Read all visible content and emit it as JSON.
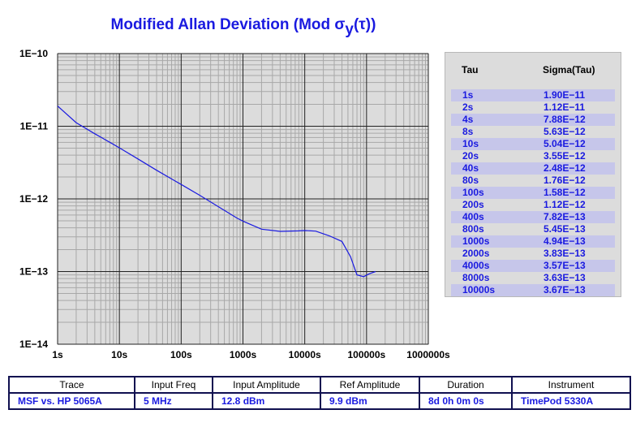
{
  "chart_data": {
    "type": "line",
    "title": "Modified Allan Deviation (Mod σ",
    "title_sub": "y",
    "title_tail": "(τ))",
    "xlabel": "",
    "ylabel": "",
    "x_scale": "log",
    "y_scale": "log",
    "xlim": [
      1,
      1000000
    ],
    "ylim": [
      1e-14,
      1e-10
    ],
    "grid": true,
    "x_tick_labels": [
      "1s",
      "10s",
      "100s",
      "1000s",
      "10000s",
      "100000s",
      "1000000s"
    ],
    "y_tick_labels": [
      "1E−10",
      "1E−11",
      "1E−12",
      "1E−13",
      "1E−14"
    ],
    "series": [
      {
        "color": "#1a1ae0",
        "x": [
          1,
          2,
          4,
          8,
          10,
          20,
          40,
          80,
          100,
          200,
          400,
          800,
          1000,
          2000,
          4000,
          8000,
          10000,
          15000,
          25000,
          40000,
          55000,
          70000,
          90000,
          110000,
          140000
        ],
        "y": [
          1.9e-11,
          1.12e-11,
          7.88e-12,
          5.63e-12,
          5.04e-12,
          3.55e-12,
          2.48e-12,
          1.76e-12,
          1.58e-12,
          1.12e-12,
          7.82e-13,
          5.45e-13,
          4.94e-13,
          3.83e-13,
          3.57e-13,
          3.63e-13,
          3.67e-13,
          3.6e-13,
          3.1e-13,
          2.6e-13,
          1.6e-13,
          9e-14,
          8.5e-14,
          9.3e-14,
          1e-13
        ]
      }
    ]
  },
  "data_table": {
    "header_tau": "Tau",
    "header_sigma": "Sigma(Tau)",
    "rows": [
      {
        "tau": "1s",
        "sigma": "1.90E−11"
      },
      {
        "tau": "2s",
        "sigma": "1.12E−11"
      },
      {
        "tau": "4s",
        "sigma": "7.88E−12"
      },
      {
        "tau": "8s",
        "sigma": "5.63E−12"
      },
      {
        "tau": "10s",
        "sigma": "5.04E−12"
      },
      {
        "tau": "20s",
        "sigma": "3.55E−12"
      },
      {
        "tau": "40s",
        "sigma": "2.48E−12"
      },
      {
        "tau": "80s",
        "sigma": "1.76E−12"
      },
      {
        "tau": "100s",
        "sigma": "1.58E−12"
      },
      {
        "tau": "200s",
        "sigma": "1.12E−12"
      },
      {
        "tau": "400s",
        "sigma": "7.82E−13"
      },
      {
        "tau": "800s",
        "sigma": "5.45E−13"
      },
      {
        "tau": "1000s",
        "sigma": "4.94E−13"
      },
      {
        "tau": "2000s",
        "sigma": "3.83E−13"
      },
      {
        "tau": "4000s",
        "sigma": "3.57E−13"
      },
      {
        "tau": "8000s",
        "sigma": "3.63E−13"
      },
      {
        "tau": "10000s",
        "sigma": "3.67E−13"
      }
    ]
  },
  "info": {
    "headers": {
      "trace": "Trace",
      "input_freq": "Input Freq",
      "input_amplitude": "Input Amplitude",
      "ref_amplitude": "Ref Amplitude",
      "duration": "Duration",
      "instrument": "Instrument"
    },
    "values": {
      "trace": "MSF vs. HP 5065A",
      "input_freq": "5 MHz",
      "input_amplitude": "12.8 dBm",
      "ref_amplitude": "9.9 dBm",
      "duration": "8d 0h 0m 0s",
      "instrument": "TimePod 5330A"
    }
  },
  "colors": {
    "plot_background": "#dcdcdc",
    "accent": "#1a1ae0",
    "table_alt_row": "#c6c6ea"
  }
}
